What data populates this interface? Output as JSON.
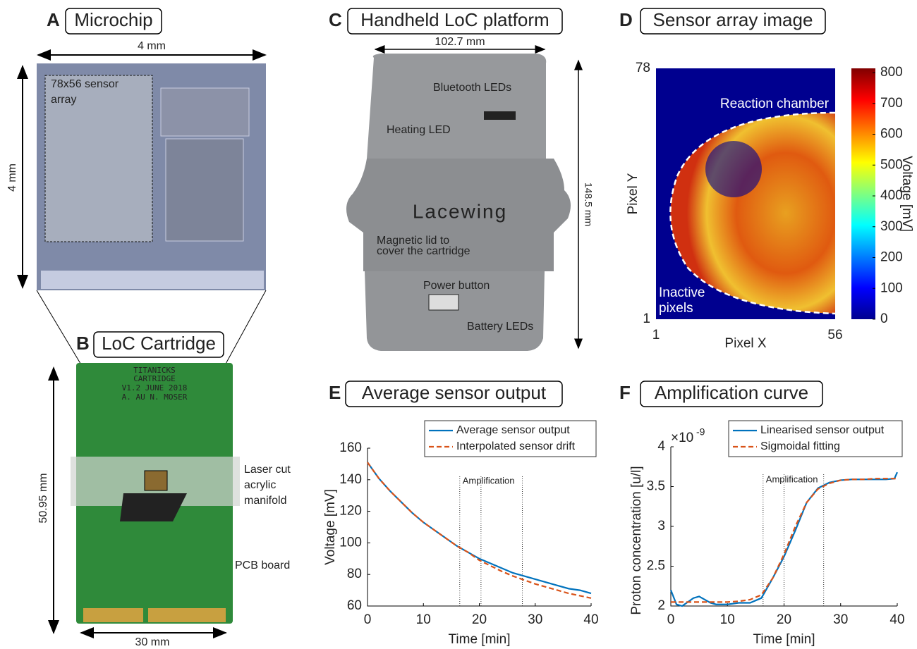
{
  "panels": {
    "a": {
      "letter": "A",
      "title": "Microchip",
      "width": "4 mm",
      "height": "4 mm",
      "array_label": [
        "78x56 sensor",
        "array"
      ]
    },
    "b": {
      "letter": "B",
      "title": "LoC Cartridge",
      "height": "50.95 mm",
      "width": "30 mm",
      "pcb_text": [
        "TITANICKS",
        "CARTRIDGE",
        "V1.2    JUNE 2018",
        "A. AU    N. MOSER"
      ],
      "manifold_label": [
        "Laser cut",
        "acrylic",
        "manifold"
      ],
      "pcb_label": "PCB board"
    },
    "c": {
      "letter": "C",
      "title": "Handheld LoC platform",
      "width": "102.7 mm",
      "height": "148.5 mm",
      "brand": "Lacewing",
      "bluetooth": "Bluetooth LEDs",
      "heating": "Heating LED",
      "lid": [
        "Magnetic lid to",
        "cover the cartridge"
      ],
      "power": "Power button",
      "battery": "Battery LEDs"
    },
    "d": {
      "letter": "D",
      "title": "Sensor array image",
      "xlabel": "Pixel X",
      "ylabel": "Pixel Y",
      "xticks": [
        1,
        56
      ],
      "yticks": [
        1,
        78
      ],
      "colorbar_label": "Voltage [mV]",
      "clim": [
        0,
        800
      ],
      "cticks": [
        0,
        100,
        200,
        300,
        400,
        500,
        600,
        700,
        800
      ],
      "chamber": "Reaction chamber",
      "inactive": [
        "Inactive",
        "pixels"
      ]
    }
  },
  "chart_data": [
    {
      "type": "line",
      "letter": "E",
      "title": "Average sensor output",
      "xlabel": "Time [min]",
      "ylabel": "Voltage [mV]",
      "x": [
        0,
        2,
        4,
        6,
        8,
        10,
        12,
        14,
        16,
        18,
        20,
        22,
        24,
        26,
        28,
        30,
        32,
        34,
        36,
        38,
        40
      ],
      "series": [
        {
          "name": "Average sensor output",
          "color": "#0072bd",
          "dashed": false,
          "values": [
            151,
            141,
            133,
            126,
            119,
            113,
            108,
            103,
            98,
            94,
            90,
            87,
            84,
            81,
            79,
            77,
            75,
            73,
            71,
            70,
            68
          ]
        },
        {
          "name": "Interpolated sensor drift",
          "color": "#d95319",
          "dashed": true,
          "values": [
            151,
            141,
            133,
            126,
            119,
            113,
            108,
            103,
            98,
            94,
            89,
            85.5,
            82,
            79,
            76.5,
            74,
            72,
            70,
            68,
            66.5,
            65
          ]
        }
      ],
      "xlim": [
        0,
        40
      ],
      "ylim": [
        60,
        160
      ],
      "xticks": [
        0,
        10,
        20,
        30,
        40
      ],
      "yticks": [
        60,
        80,
        100,
        120,
        140,
        160
      ],
      "vlines": [
        16.5,
        20.3,
        27.7
      ],
      "annotation": "Amplification",
      "legend": "upper right"
    },
    {
      "type": "line",
      "letter": "F",
      "title": "Amplification curve",
      "xlabel": "Time [min]",
      "ylabel": "Proton concentration [u/l]",
      "y_multiplier": "×10",
      "y_exponent": "-9",
      "x": [
        0,
        1,
        2,
        3,
        4,
        5,
        6,
        7,
        8,
        10,
        12,
        14,
        16,
        18,
        20,
        22,
        24,
        26,
        28,
        30,
        32,
        34,
        36,
        38,
        39.5,
        40
      ],
      "series": [
        {
          "name": "Linearised sensor output",
          "color": "#0072bd",
          "dashed": false,
          "values": [
            2.2,
            2.02,
            2.0,
            2.05,
            2.1,
            2.12,
            2.08,
            2.04,
            2.02,
            2.02,
            2.04,
            2.04,
            2.1,
            2.35,
            2.62,
            2.95,
            3.3,
            3.48,
            3.55,
            3.58,
            3.59,
            3.59,
            3.59,
            3.59,
            3.6,
            3.68
          ]
        },
        {
          "name": "Sigmoidal fitting",
          "color": "#d95319",
          "dashed": true,
          "values": [
            2.05,
            2.05,
            2.05,
            2.05,
            2.05,
            2.05,
            2.05,
            2.05,
            2.05,
            2.05,
            2.06,
            2.08,
            2.14,
            2.35,
            2.65,
            3.0,
            3.3,
            3.47,
            3.54,
            3.58,
            3.59,
            3.59,
            3.6,
            3.6,
            3.6,
            3.6
          ]
        }
      ],
      "xlim": [
        0,
        40
      ],
      "ylim": [
        2,
        4
      ],
      "xticks": [
        0,
        10,
        20,
        30,
        40
      ],
      "yticks": [
        2,
        2.5,
        3,
        3.5,
        4
      ],
      "vlines": [
        16.3,
        20,
        27
      ],
      "annotation": "Amplification",
      "legend": "upper right"
    }
  ]
}
